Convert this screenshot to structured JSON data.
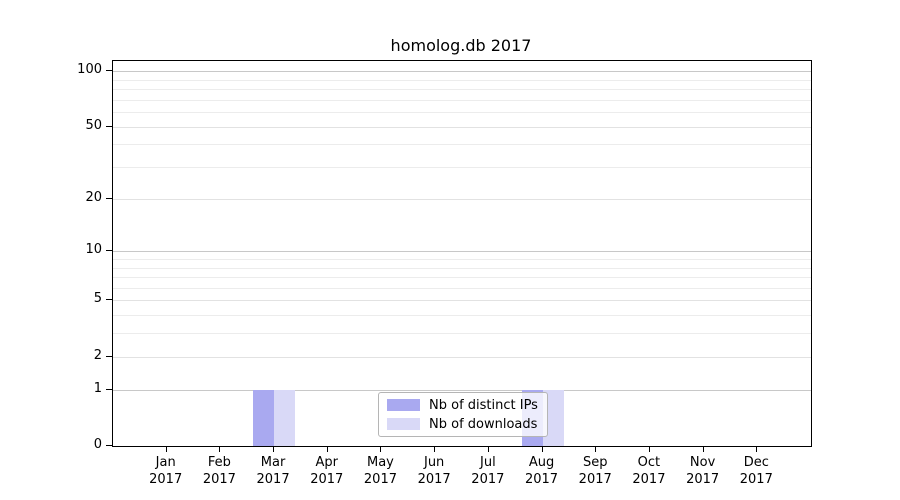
{
  "chart_data": {
    "type": "bar",
    "title": "homolog.db 2017",
    "categories": [
      "Jan",
      "Feb",
      "Mar",
      "Apr",
      "May",
      "Jun",
      "Jul",
      "Aug",
      "Sep",
      "Oct",
      "Nov",
      "Dec"
    ],
    "category_year": "2017",
    "series": [
      {
        "name": "Nb of distinct IPs",
        "color": "#a9a9f0",
        "values": [
          0,
          0,
          1,
          0,
          0,
          0,
          0,
          1,
          0,
          0,
          0,
          0
        ]
      },
      {
        "name": "Nb of downloads",
        "color": "#d9d9f7",
        "values": [
          0,
          0,
          1,
          0,
          0,
          0,
          0,
          1,
          0,
          0,
          0,
          0
        ]
      }
    ],
    "xlabel": "",
    "ylabel": "",
    "yscale": "log1p",
    "ylim": [
      0,
      117
    ],
    "y_ticks": [
      0,
      1,
      2,
      5,
      10,
      20,
      50,
      100
    ],
    "gridlines": {
      "major": [
        1,
        10,
        100
      ],
      "mid": [
        2,
        5,
        20,
        50
      ],
      "minor": [
        3,
        4,
        6,
        7,
        8,
        9,
        30,
        40,
        60,
        70,
        80,
        90
      ]
    },
    "legend_position": "lower center"
  },
  "colors": {
    "grid_major": "#c8c8c8",
    "grid_mid": "#e2e2e2",
    "grid_minor": "#ececec",
    "axis": "#000000"
  }
}
